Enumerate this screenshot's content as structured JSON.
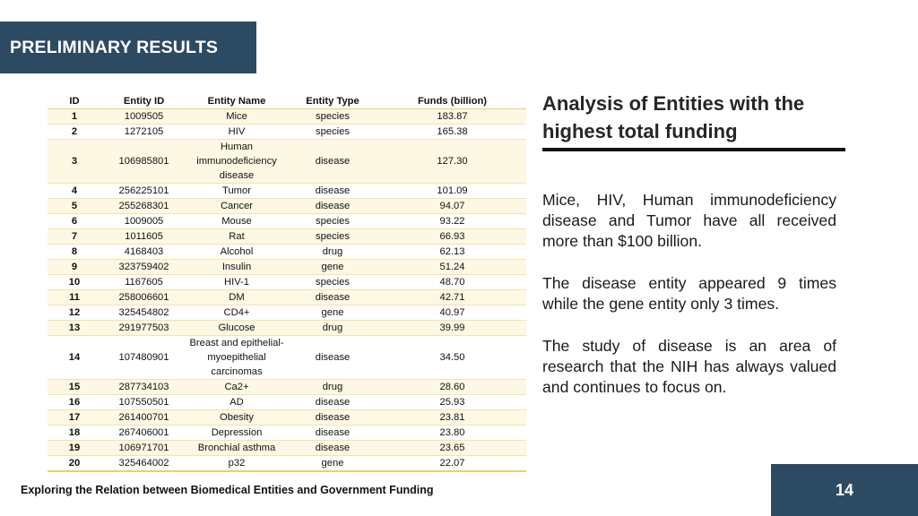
{
  "slide": {
    "title": "PRELIMINARY RESULTS",
    "footer": "Exploring the Relation between Biomedical Entities and Government Funding",
    "page_number": "14"
  },
  "table": {
    "headers": [
      "ID",
      "Entity ID",
      "Entity Name",
      "Entity Type",
      "Funds (billion)"
    ],
    "rows": [
      {
        "id": "1",
        "entity_id": "1009505",
        "name": "Mice",
        "type": "species",
        "funds": "183.87"
      },
      {
        "id": "2",
        "entity_id": "1272105",
        "name": "HIV",
        "type": "species",
        "funds": "165.38"
      },
      {
        "id": "3",
        "entity_id": "106985801",
        "name": "Human immunodeficiency disease",
        "type": "disease",
        "funds": "127.30"
      },
      {
        "id": "4",
        "entity_id": "256225101",
        "name": "Tumor",
        "type": "disease",
        "funds": "101.09"
      },
      {
        "id": "5",
        "entity_id": "255268301",
        "name": "Cancer",
        "type": "disease",
        "funds": "94.07"
      },
      {
        "id": "6",
        "entity_id": "1009005",
        "name": "Mouse",
        "type": "species",
        "funds": "93.22"
      },
      {
        "id": "7",
        "entity_id": "1011605",
        "name": "Rat",
        "type": "species",
        "funds": "66.93"
      },
      {
        "id": "8",
        "entity_id": "4168403",
        "name": "Alcohol",
        "type": "drug",
        "funds": "62.13"
      },
      {
        "id": "9",
        "entity_id": "323759402",
        "name": "Insulin",
        "type": "gene",
        "funds": "51.24"
      },
      {
        "id": "10",
        "entity_id": "1167605",
        "name": "HIV-1",
        "type": "species",
        "funds": "48.70"
      },
      {
        "id": "11",
        "entity_id": "258006601",
        "name": "DM",
        "type": "disease",
        "funds": "42.71"
      },
      {
        "id": "12",
        "entity_id": "325454802",
        "name": "CD4+",
        "type": "gene",
        "funds": "40.97"
      },
      {
        "id": "13",
        "entity_id": "291977503",
        "name": "Glucose",
        "type": "drug",
        "funds": "39.99"
      },
      {
        "id": "14",
        "entity_id": "107480901",
        "name": "Breast and epithelial-myoepithelial carcinomas",
        "type": "disease",
        "funds": "34.50"
      },
      {
        "id": "15",
        "entity_id": "287734103",
        "name": "Ca2+",
        "type": "drug",
        "funds": "28.60"
      },
      {
        "id": "16",
        "entity_id": "107550501",
        "name": "AD",
        "type": "disease",
        "funds": "25.93"
      },
      {
        "id": "17",
        "entity_id": "261400701",
        "name": "Obesity",
        "type": "disease",
        "funds": "23.81"
      },
      {
        "id": "18",
        "entity_id": "267406001",
        "name": "Depression",
        "type": "disease",
        "funds": "23.80"
      },
      {
        "id": "19",
        "entity_id": "106971701",
        "name": "Bronchial asthma",
        "type": "disease",
        "funds": "23.65"
      },
      {
        "id": "20",
        "entity_id": "325464002",
        "name": "p32",
        "type": "gene",
        "funds": "22.07"
      }
    ]
  },
  "analysis": {
    "heading": "Analysis of Entities with the highest total funding",
    "paragraphs": [
      "Mice, HIV, Human immunodeficiency disease and Tumor have all received more than $100 billion.",
      "The disease entity appeared 9 times while the gene entity only 3 times.",
      "The study of disease is an area of research that the NIH has always valued and continues to focus on."
    ]
  },
  "colors": {
    "accent": "#2d4a63",
    "row_stripe": "#fdf8e3",
    "table_rule": "#e9cf6f"
  }
}
